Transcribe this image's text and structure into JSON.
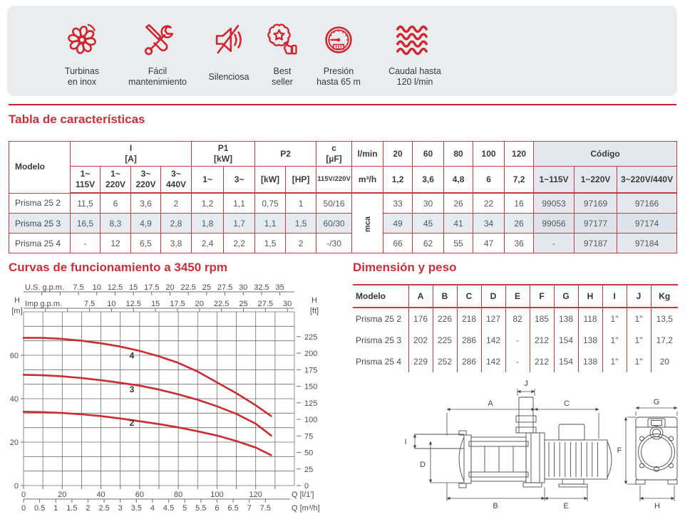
{
  "colors": {
    "brand_red": "#c7242c",
    "title_red": "#c9303a",
    "banner_bg": "#e9edef",
    "table_stripe": "#e4ebf1",
    "codigo_bg": "#e3e9ee",
    "curve_red": "#cb2c31",
    "grid_gray": "#6e6e6e",
    "icon_red": "#d2252d"
  },
  "banner": {
    "features": [
      {
        "label": "Turbinas\nen inox",
        "icon": "turbine-icon"
      },
      {
        "label": "Fácil\nmantenimiento",
        "icon": "tools-icon"
      },
      {
        "label": "Silenciosa",
        "icon": "muted-speaker-icon"
      },
      {
        "label": "Best\nseller",
        "icon": "best-seller-badge-icon"
      },
      {
        "label": "Presión\nhasta 65 m",
        "icon": "pressure-gauge-icon"
      },
      {
        "label": "Caudal hasta\n120 l/min",
        "icon": "water-flow-waves-icon"
      }
    ]
  },
  "sections": {
    "caracteristicas": "Tabla de características",
    "curvas": "Curvas de funcionamiento a 3450 rpm",
    "dimension": "Dimensión y peso"
  },
  "char_table": {
    "headers": {
      "modelo": "Modelo",
      "i_group": "I\n[A]",
      "i_cols": [
        "1~\n115V",
        "1~\n220V",
        "3~\n220V",
        "3~\n440V"
      ],
      "p1_group": "P1\n[kW]",
      "p1_cols": [
        "1~",
        "3~"
      ],
      "p2_group": "P2",
      "p2_cols": [
        "[kW]",
        "[HP]"
      ],
      "c_group": "c\n[µF]",
      "c_sub": "115V/220V",
      "flow_lmin": "l/min",
      "flow_m3h": "m³/h",
      "flow_lmin_vals": [
        "20",
        "60",
        "80",
        "100",
        "120"
      ],
      "flow_m3h_vals": [
        "1,2",
        "3,6",
        "4,8",
        "6",
        "7,2"
      ],
      "mca": "mca",
      "codigo": "Código",
      "codigo_cols": [
        "1~115V",
        "1~220V",
        "3~220V/440V"
      ]
    },
    "rows": [
      {
        "model": "Prisma 25 2",
        "values": [
          "11,5",
          "6",
          "3,6",
          "2",
          "1,2",
          "1,1",
          "0,75",
          "1",
          "50/16"
        ],
        "flows": [
          "33",
          "30",
          "26",
          "22",
          "16"
        ],
        "codes": [
          "99053",
          "97169",
          "97166"
        ]
      },
      {
        "model": "Prisma 25 3",
        "values": [
          "16,5",
          "8,3",
          "4,9",
          "2,8",
          "1,8",
          "1,7",
          "1,1",
          "1,5",
          "60/30"
        ],
        "flows": [
          "49",
          "45",
          "41",
          "34",
          "26"
        ],
        "codes": [
          "99056",
          "97177",
          "97174"
        ]
      },
      {
        "model": "Prisma 25 4",
        "values": [
          "-",
          "12",
          "6,5",
          "3,8",
          "2,4",
          "2,2",
          "1,5",
          "2",
          "-/30"
        ],
        "flows": [
          "66",
          "62",
          "55",
          "47",
          "36"
        ],
        "codes": [
          "-",
          "97187",
          "97184"
        ]
      }
    ]
  },
  "dim_table": {
    "headers": [
      "Modelo",
      "A",
      "B",
      "C",
      "D",
      "E",
      "F",
      "G",
      "H",
      "I",
      "J",
      "Kg"
    ],
    "rows": [
      [
        "Prisma 25 2",
        "176",
        "226",
        "218",
        "127",
        "82",
        "185",
        "138",
        "118",
        "1\"",
        "1\"",
        "13,5"
      ],
      [
        "Prisma 25 3",
        "202",
        "225",
        "286",
        "142",
        "-",
        "212",
        "154",
        "138",
        "1\"",
        "1\"",
        "17,2"
      ],
      [
        "Prisma 25 4",
        "229",
        "252",
        "286",
        "142",
        "-",
        "212",
        "154",
        "138",
        "1\"",
        "1\"",
        "20"
      ]
    ]
  },
  "chart_data": {
    "type": "line",
    "title": "Curvas de funcionamiento a 3450 rpm",
    "x_range": [
      0,
      140
    ],
    "y_range_m": [
      0,
      80
    ],
    "grid": true,
    "axes": {
      "us_gpm": {
        "label": "U.S. g.p.m.",
        "ticks": [
          7.5,
          10,
          12.5,
          15,
          17.5,
          20,
          22.5,
          25,
          27.5,
          30,
          32.5,
          35
        ]
      },
      "imp_gpm": {
        "label": "Imp g.p.m.",
        "ticks": [
          7.5,
          10,
          12.5,
          15,
          17.5,
          20,
          22.5,
          25,
          27.5,
          30
        ]
      },
      "q_lmin": {
        "label": "Q [l/1']",
        "ticks": [
          0,
          20,
          40,
          60,
          80,
          100,
          120
        ]
      },
      "q_m3h": {
        "label": "Q [m³/h]",
        "ticks": [
          0,
          0.5,
          1,
          1.5,
          2,
          2.5,
          3,
          3.5,
          4,
          4.5,
          5,
          5.5,
          6,
          6.5,
          7,
          7.5
        ]
      },
      "h_m": {
        "name": "H",
        "unit": "[m]",
        "ticks": [
          0,
          20,
          40,
          60
        ]
      },
      "h_ft": {
        "name": "H",
        "unit": "[ft]",
        "ticks": [
          0,
          25,
          50,
          75,
          100,
          125,
          150,
          175,
          200,
          225
        ]
      }
    },
    "series": [
      {
        "name": "4",
        "label_at": [
          56,
          58.5
        ],
        "points": [
          [
            0,
            68
          ],
          [
            10,
            68
          ],
          [
            20,
            67.5
          ],
          [
            30,
            66.7
          ],
          [
            40,
            65.5
          ],
          [
            50,
            64
          ],
          [
            60,
            62
          ],
          [
            70,
            59.5
          ],
          [
            80,
            56.5
          ],
          [
            90,
            52.5
          ],
          [
            100,
            47.5
          ],
          [
            110,
            42.5
          ],
          [
            120,
            37
          ],
          [
            128,
            32
          ]
        ]
      },
      {
        "name": "3",
        "label_at": [
          56,
          43
        ],
        "points": [
          [
            0,
            51
          ],
          [
            10,
            50.8
          ],
          [
            20,
            50.3
          ],
          [
            30,
            49.5
          ],
          [
            40,
            48.5
          ],
          [
            50,
            47.3
          ],
          [
            60,
            46
          ],
          [
            70,
            44.2
          ],
          [
            80,
            42
          ],
          [
            90,
            39.5
          ],
          [
            100,
            36.5
          ],
          [
            110,
            33
          ],
          [
            120,
            28.5
          ],
          [
            128,
            23
          ]
        ]
      },
      {
        "name": "2",
        "label_at": [
          56,
          27.5
        ],
        "points": [
          [
            0,
            34
          ],
          [
            10,
            33.8
          ],
          [
            20,
            33.4
          ],
          [
            30,
            32.8
          ],
          [
            40,
            32
          ],
          [
            50,
            30.9
          ],
          [
            60,
            29.6
          ],
          [
            70,
            28.3
          ],
          [
            80,
            26.8
          ],
          [
            90,
            25
          ],
          [
            100,
            23
          ],
          [
            110,
            20.5
          ],
          [
            120,
            17.5
          ],
          [
            128,
            14
          ]
        ]
      }
    ]
  },
  "drawing": {
    "A": "A",
    "B": "B",
    "C": "C",
    "D": "D",
    "E": "E",
    "F": "F",
    "G": "G",
    "H": "H",
    "I": "I",
    "J": "J"
  }
}
